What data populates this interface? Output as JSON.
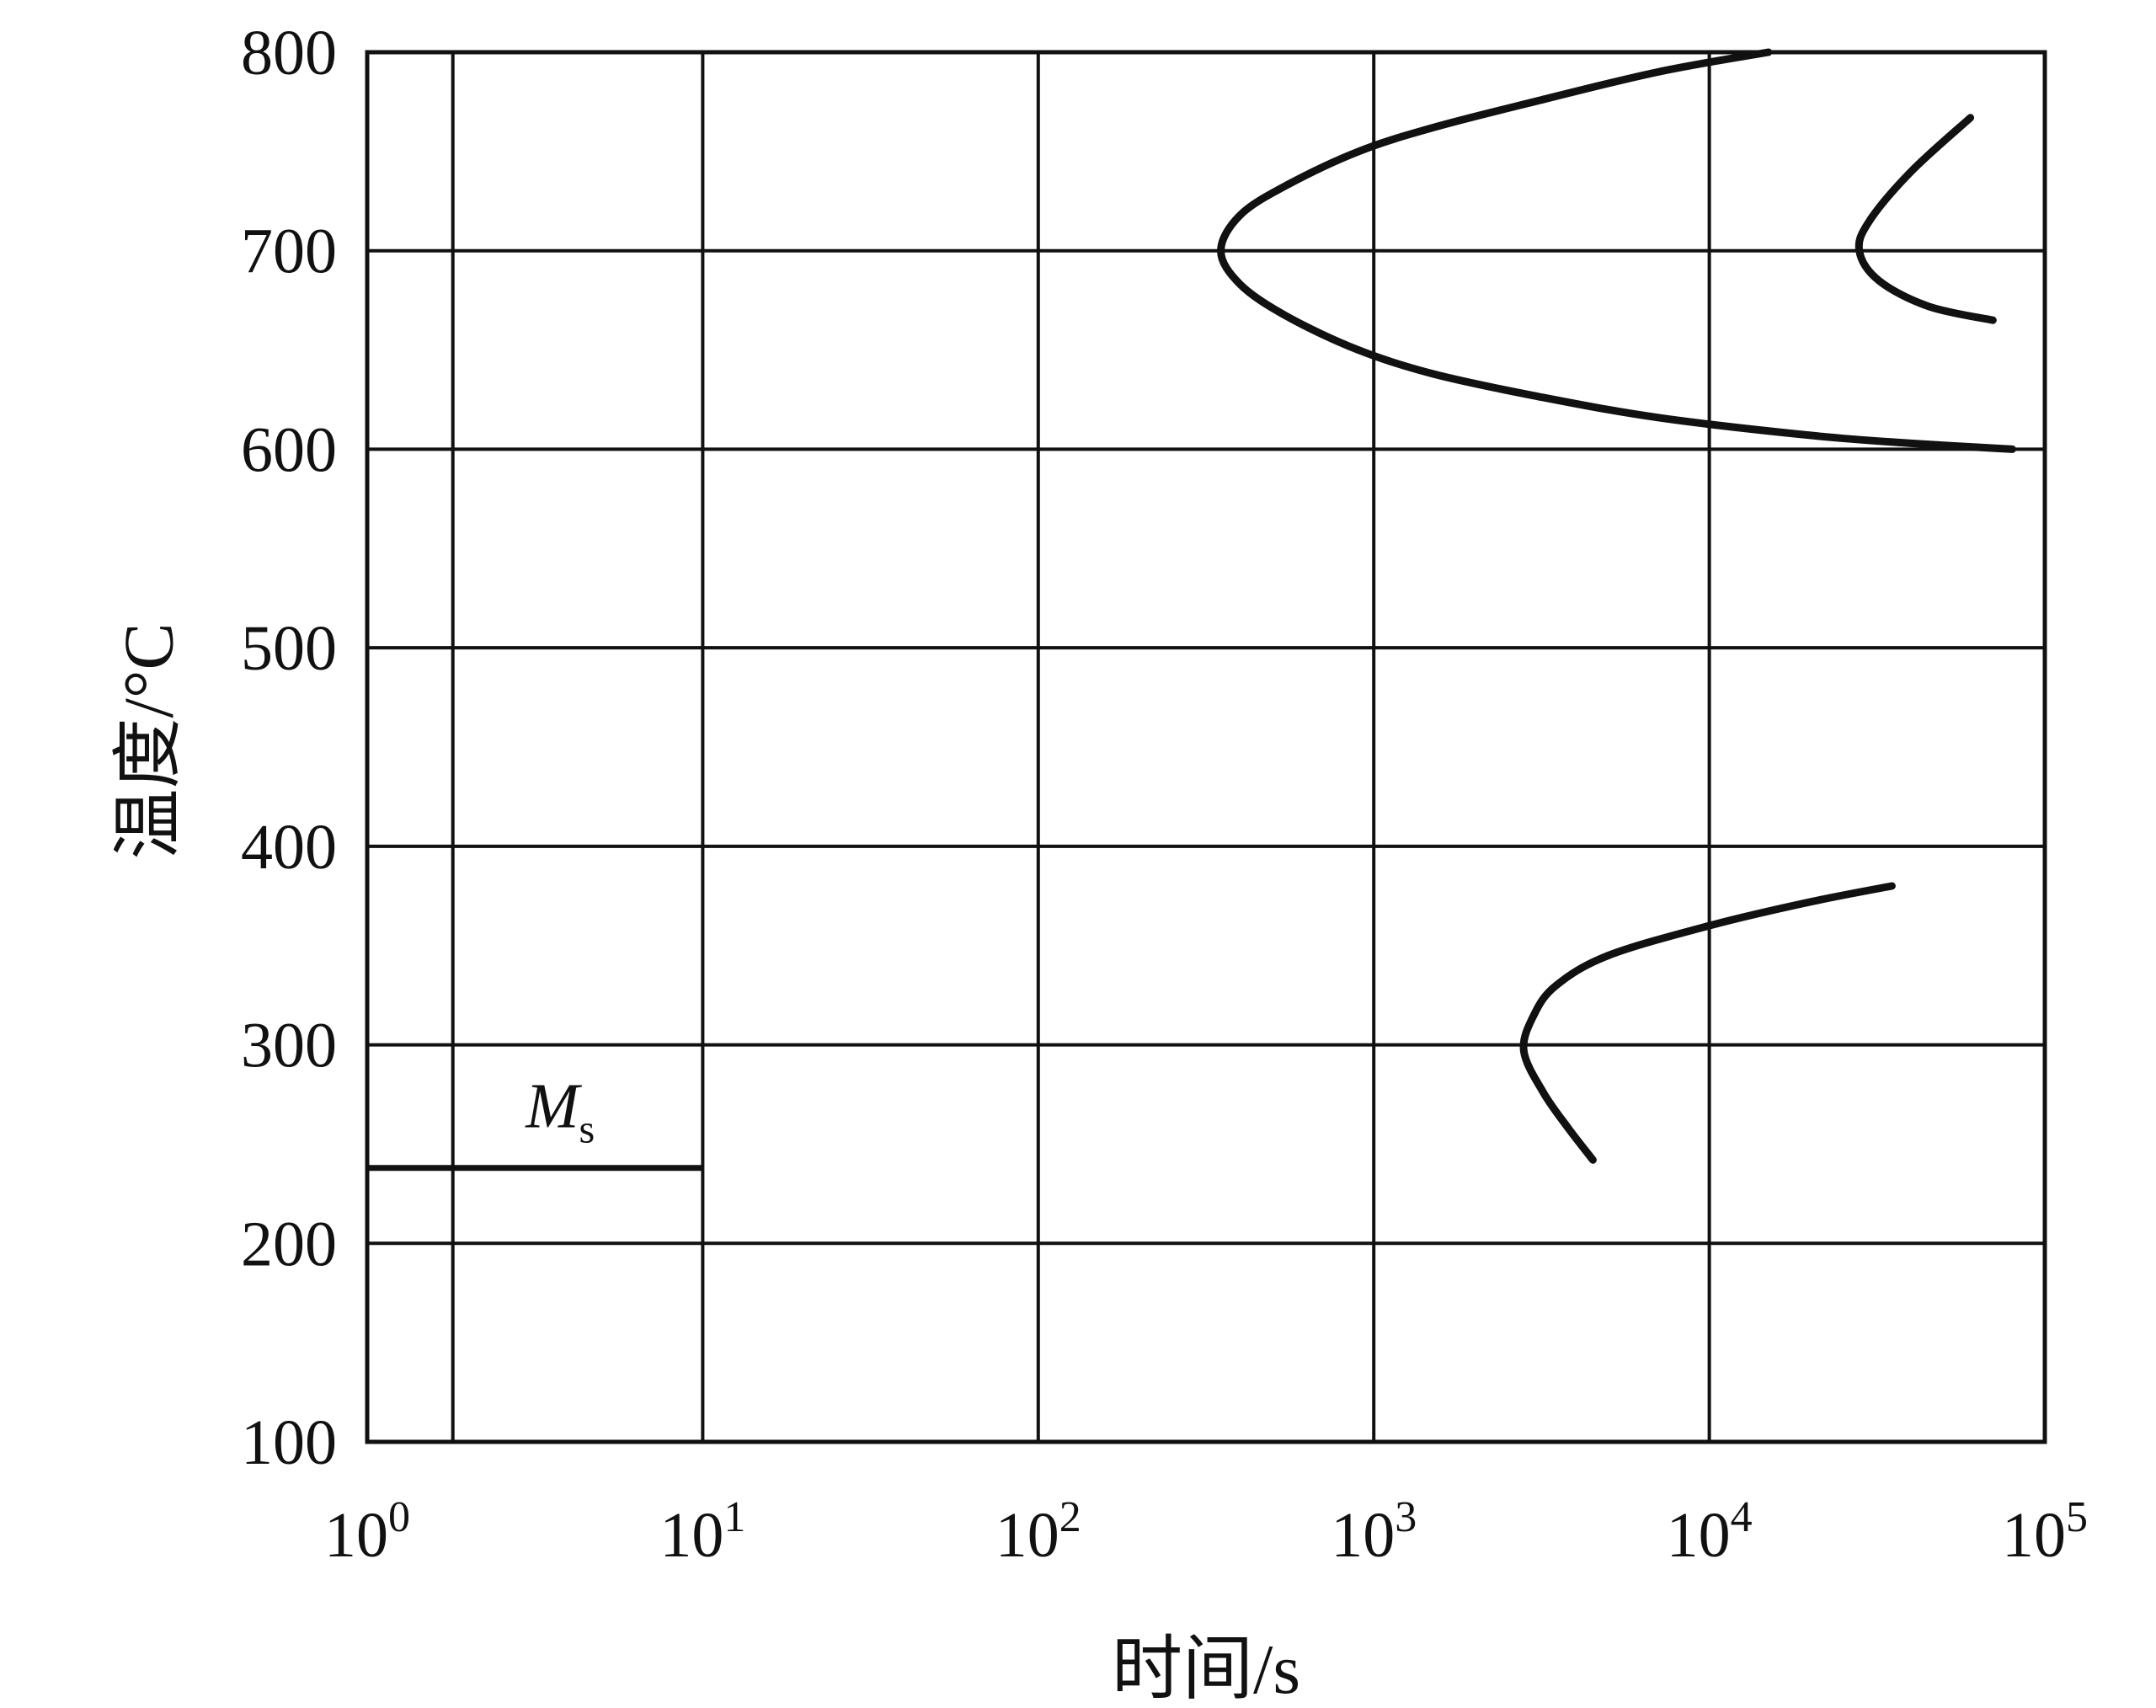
{
  "chart_data": {
    "type": "line",
    "xlabel": "时间/s",
    "ylabel": "温度/°C",
    "x_scale": "log",
    "xlim": [
      1,
      100000
    ],
    "ylim": [
      100,
      800
    ],
    "grid": true,
    "x_ticks": [
      {
        "value": 1,
        "base": "10",
        "exp": "0"
      },
      {
        "value": 10,
        "base": "10",
        "exp": "1"
      },
      {
        "value": 100,
        "base": "10",
        "exp": "2"
      },
      {
        "value": 1000,
        "base": "10",
        "exp": "3"
      },
      {
        "value": 10000,
        "base": "10",
        "exp": "4"
      },
      {
        "value": 100000,
        "base": "10",
        "exp": "5"
      }
    ],
    "x_extra_gridlines": [
      1.8
    ],
    "y_ticks": [
      {
        "value": 100,
        "label": "100"
      },
      {
        "value": 200,
        "label": "200"
      },
      {
        "value": 300,
        "label": "300"
      },
      {
        "value": 400,
        "label": "400"
      },
      {
        "value": 500,
        "label": "500"
      },
      {
        "value": 600,
        "label": "600"
      },
      {
        "value": 700,
        "label": "700"
      },
      {
        "value": 800,
        "label": "800"
      }
    ],
    "series": [
      {
        "points": [
          [
            15000,
            800
          ],
          [
            7000,
            790
          ],
          [
            3000,
            775
          ],
          [
            1500,
            762
          ],
          [
            900,
            750
          ],
          [
            550,
            733
          ],
          [
            400,
            718
          ],
          [
            350,
            700
          ],
          [
            400,
            683
          ],
          [
            550,
            667
          ],
          [
            900,
            650
          ],
          [
            1500,
            638
          ],
          [
            3000,
            627
          ],
          [
            7000,
            616
          ],
          [
            20000,
            607
          ],
          [
            40000,
            603
          ],
          [
            80000,
            600
          ]
        ]
      },
      {
        "points": [
          [
            60000,
            767
          ],
          [
            40000,
            740
          ],
          [
            30000,
            715
          ],
          [
            28000,
            700
          ],
          [
            32000,
            685
          ],
          [
            45000,
            672
          ],
          [
            70000,
            665
          ]
        ]
      },
      {
        "points": [
          [
            35000,
            380
          ],
          [
            20000,
            372
          ],
          [
            10000,
            360
          ],
          [
            5000,
            345
          ],
          [
            3500,
            330
          ],
          [
            3000,
            315
          ],
          [
            2800,
            297
          ],
          [
            3200,
            276
          ],
          [
            3800,
            258
          ],
          [
            4500,
            242
          ]
        ]
      }
    ],
    "horizontal_lines": [
      {
        "label_main": "M",
        "label_sub": "s",
        "y": 238,
        "x_from": 1,
        "x_to": 10
      }
    ]
  }
}
